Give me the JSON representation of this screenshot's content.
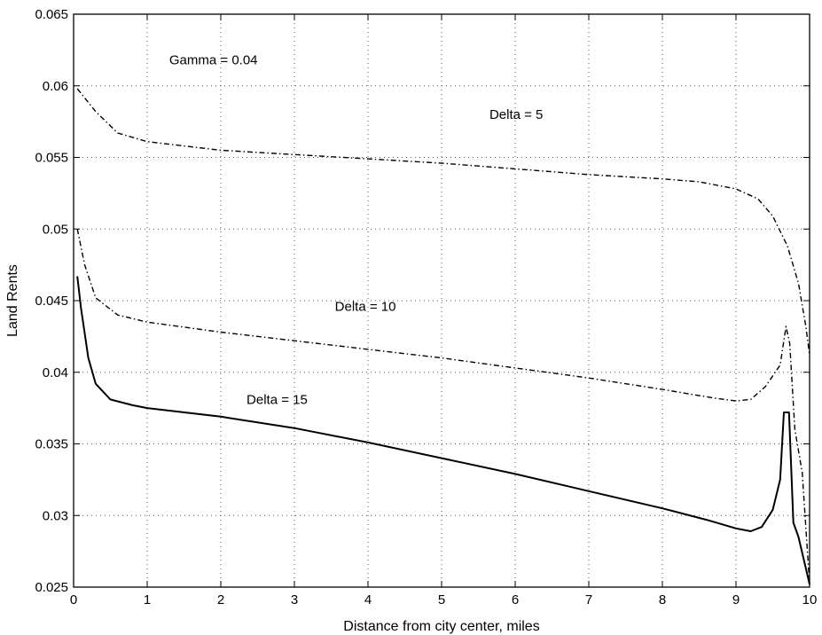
{
  "chart_data": {
    "type": "line",
    "title": "",
    "xlabel": "Distance from city center, miles",
    "ylabel": "Land Rents",
    "xlim": [
      0,
      10
    ],
    "ylim": [
      0.025,
      0.065
    ],
    "xticks": [
      "0",
      "1",
      "2",
      "3",
      "4",
      "5",
      "6",
      "7",
      "8",
      "9",
      "10"
    ],
    "yticks": [
      "0.025",
      "0.03",
      "0.035",
      "0.04",
      "0.045",
      "0.05",
      "0.055",
      "0.06",
      "0.065"
    ],
    "grid": true,
    "annotations": [
      {
        "text": "Gamma = 0.04",
        "x": 1.3,
        "y": 0.0615
      },
      {
        "text": "Delta = 5",
        "x": 5.65,
        "y": 0.0577
      },
      {
        "text": "Delta = 10",
        "x": 3.55,
        "y": 0.0443
      },
      {
        "text": "Delta = 15",
        "x": 2.35,
        "y": 0.0378
      }
    ],
    "series": [
      {
        "line_style": "dash-dot",
        "x": [
          0.05,
          0.3,
          0.6,
          1.0,
          2.0,
          3.0,
          4.0,
          5.0,
          6.0,
          7.0,
          8.0,
          8.5,
          9.0,
          9.3,
          9.5,
          9.7,
          9.85,
          9.95,
          10.0
        ],
        "y": [
          0.0598,
          0.0582,
          0.0567,
          0.0561,
          0.0555,
          0.0552,
          0.0549,
          0.0546,
          0.0542,
          0.0538,
          0.0535,
          0.0533,
          0.0528,
          0.0521,
          0.0509,
          0.0488,
          0.0462,
          0.0432,
          0.0412
        ]
      },
      {
        "line_style": "dash-dot",
        "x": [
          0.05,
          0.15,
          0.3,
          0.6,
          1.0,
          2.0,
          3.0,
          4.0,
          5.0,
          6.0,
          7.0,
          8.0,
          8.7,
          9.0,
          9.2,
          9.4,
          9.6,
          9.68,
          9.73,
          9.8,
          9.9,
          10.0
        ],
        "y": [
          0.05,
          0.0475,
          0.0452,
          0.044,
          0.0435,
          0.0428,
          0.0422,
          0.0416,
          0.041,
          0.0403,
          0.0396,
          0.0388,
          0.0382,
          0.038,
          0.0381,
          0.039,
          0.0405,
          0.0432,
          0.042,
          0.036,
          0.033,
          0.0252
        ]
      },
      {
        "line_style": "solid",
        "x": [
          0.05,
          0.1,
          0.2,
          0.3,
          0.5,
          0.8,
          1.0,
          2.0,
          3.0,
          4.0,
          5.0,
          6.0,
          7.0,
          8.0,
          8.6,
          9.0,
          9.2,
          9.35,
          9.5,
          9.6,
          9.65,
          9.72,
          9.78,
          9.85,
          10.0
        ],
        "y": [
          0.0467,
          0.0445,
          0.041,
          0.0392,
          0.0381,
          0.0377,
          0.0375,
          0.0369,
          0.0361,
          0.0351,
          0.034,
          0.0329,
          0.0317,
          0.0305,
          0.0297,
          0.0291,
          0.0289,
          0.0292,
          0.0304,
          0.0325,
          0.0372,
          0.0372,
          0.0295,
          0.0285,
          0.0252
        ]
      }
    ]
  }
}
